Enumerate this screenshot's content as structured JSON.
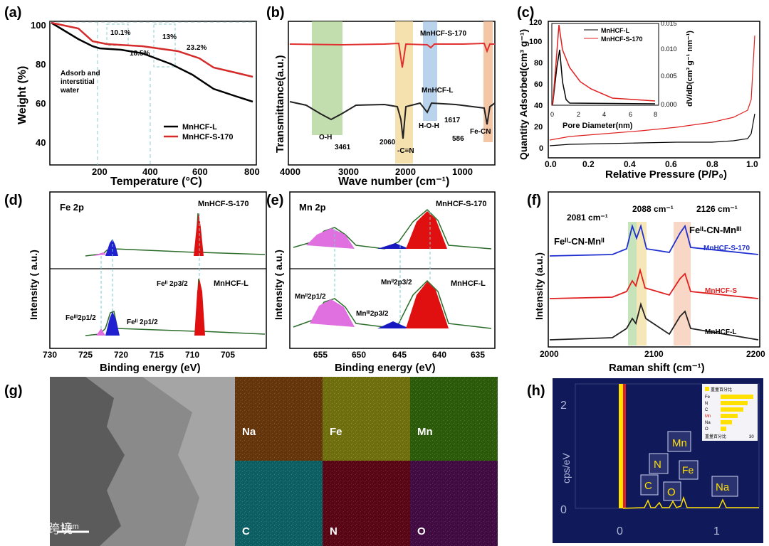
{
  "panels": {
    "a": {
      "label": "(a)",
      "xlabel": "Temperature (°C)",
      "ylabel": "Weight (%)",
      "xticks": [
        "200",
        "400",
        "600",
        "800"
      ],
      "yticks": [
        "40",
        "60",
        "80",
        "100"
      ],
      "ann": [
        "10.1%",
        "13%",
        "18.5%",
        "23.2%"
      ],
      "note1": "Adsorb and",
      "note2": "interstitial",
      "note3": "water",
      "legend": [
        "MnHCF-L",
        "MnHCF-S-170"
      ]
    },
    "b": {
      "label": "(b)",
      "xlabel": "Wave number (cm⁻¹)",
      "ylabel": "Transmittance(a.u.)",
      "xticks": [
        "4000",
        "3000",
        "2000",
        "1000"
      ],
      "peaks": [
        "O-H",
        "3461",
        "2060",
        "-C≡N",
        "H-O-H",
        "1617",
        "586",
        "Fe-CN"
      ],
      "series": [
        "MnHCF-S-170",
        "MnHCF-L"
      ]
    },
    "c": {
      "label": "(c)",
      "xlabel": "Relative Pressure (P/P₀)",
      "ylabel": "Quantity Adsorbed(cm³ g⁻¹)",
      "xticks": [
        "0.0",
        "0.2",
        "0.4",
        "0.6",
        "0.8",
        "1.0"
      ],
      "yticks": [
        "0",
        "20",
        "40",
        "60",
        "80",
        "100",
        "120"
      ],
      "inset_xlabel": "Pore Diameter(nm)",
      "inset_ylabel": "dV/dD(cm³ g⁻¹ nm⁻¹)",
      "inset_xticks": [
        "0",
        "2",
        "4",
        "6",
        "8"
      ],
      "inset_yticks": [
        "0.000",
        "0.005",
        "0.010",
        "0.015"
      ],
      "legend": [
        "MnHCF-L",
        "MnHCF-S-170"
      ]
    },
    "d": {
      "label": "(d)",
      "title": "Fe 2p",
      "xlabel": "Binding energy (eV)",
      "ylabel": "Intensity  ( a.u.)",
      "xticks": [
        "730",
        "725",
        "720",
        "715",
        "710",
        "705"
      ],
      "top": "MnHCF-S-170",
      "bottom": "MnHCF-L",
      "p1": "Feᴵᴵ 2p3/2",
      "p2": "Feᴵᴵᴵ2p1/2",
      "p3": "Feᴵᴵ 2p1/2"
    },
    "e": {
      "label": "(e)",
      "title": "Mn 2p",
      "xlabel": "Binding energy (eV)",
      "ylabel": "Intensity  ( a.u.)",
      "xticks": [
        "655",
        "650",
        "645",
        "640",
        "635"
      ],
      "top": "MnHCF-S-170",
      "bottom": "MnHCF-L",
      "p1": "Mnᴵᴵ2p1/2",
      "p2": "Mnᴵᴵᴵ2p3/2",
      "p3": "Mnᴵᴵ2p3/2"
    },
    "f": {
      "label": "(f)",
      "xlabel": "Raman shift (cm⁻¹)",
      "ylabel": "Intensity (a.u.)",
      "xticks": [
        "2000",
        "2100",
        "2200"
      ],
      "peaks": [
        "2081 cm⁻¹",
        "2088 cm⁻¹",
        "2126 cm⁻¹"
      ],
      "assign": [
        "Feᴵᴵ-CN-Mnᴵᴵ",
        "Feᴵᴵ-CN-Mnᴵᴵᴵ"
      ],
      "series": [
        "MnHCF-S-170",
        "MnHCF-S",
        "MnHCF-L"
      ]
    },
    "g": {
      "label": "(g)",
      "scale": "1 µm",
      "maps": [
        "Na",
        "Fe",
        "Mn",
        "C",
        "N",
        "O"
      ],
      "watermark": "大数跨境"
    },
    "h": {
      "label": "(h)",
      "ylabel": "cps/eV",
      "yticks": [
        "2",
        "0"
      ],
      "xticks": [
        "0",
        "1"
      ],
      "elements": [
        "Mn",
        "N",
        "Fe",
        "C",
        "O",
        "Na"
      ],
      "inset_title": "重量百分比",
      "inset_rows": [
        "Fe",
        "N",
        "C",
        "Mn",
        "Na",
        "O"
      ],
      "inset_axis": "重量百分比",
      "inset_max": "30"
    }
  }
}
